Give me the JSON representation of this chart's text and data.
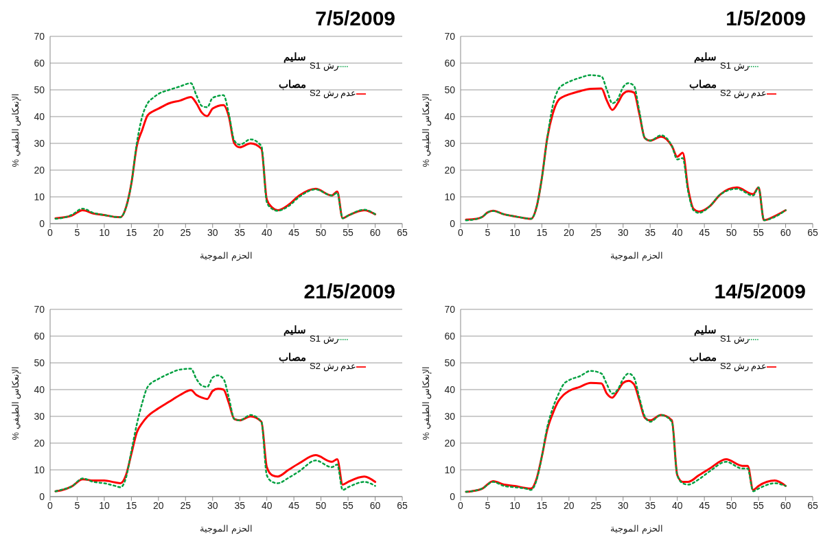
{
  "chart_data": [
    {
      "type": "line",
      "title": "7/5/2009",
      "xlabel": "الحزم الموجية",
      "ylabel": "% الإنعكاس الطيفي",
      "xlim": [
        0,
        65
      ],
      "xticks": [
        0,
        5,
        10,
        15,
        20,
        25,
        30,
        35,
        40,
        45,
        50,
        55,
        60,
        65
      ],
      "ylim": [
        0,
        70
      ],
      "yticks": [
        0,
        10,
        20,
        30,
        40,
        50,
        60,
        70
      ],
      "grid": "y",
      "legend": "top right",
      "marker": "none",
      "annotations": [
        "سليم",
        "مصاب"
      ],
      "x": [
        1,
        3,
        4,
        6,
        8,
        10,
        12,
        13,
        14,
        15,
        16,
        17,
        18,
        19,
        20,
        22,
        24,
        26,
        27,
        28,
        29,
        30,
        32,
        33,
        34,
        35,
        37,
        39,
        40,
        41,
        42,
        44,
        46,
        49,
        52,
        53,
        54,
        55,
        58,
        60
      ],
      "series": [
        {
          "name": "رش  S1",
          "color": "#00a040",
          "line_style": "dashed",
          "values": [
            1.8,
            2.5,
            3.3,
            5.6,
            4,
            3.2,
            2.5,
            2.4,
            6,
            15,
            30,
            40,
            45,
            47,
            48.5,
            50,
            51.3,
            52.5,
            48,
            44,
            43.5,
            47,
            48,
            41,
            31,
            29.5,
            31.5,
            29,
            8,
            5.5,
            4.8,
            6.5,
            10,
            12.8,
            10.5,
            11.5,
            2,
            3,
            5.2,
            3.5
          ]
        },
        {
          "name": "عدم رش S2",
          "color": "#ff0000",
          "line_style": "solid",
          "values": [
            2,
            2.5,
            3,
            5,
            3.8,
            3.2,
            2.5,
            2.4,
            6,
            15,
            29,
            35,
            40.5,
            42,
            43,
            45,
            46,
            47.3,
            45,
            41.5,
            40.2,
            43,
            44.3,
            40,
            30,
            28.5,
            30,
            28,
            9,
            6,
            5,
            7,
            10.5,
            13,
            10.5,
            12,
            2,
            3,
            5,
            3.5
          ]
        }
      ]
    },
    {
      "type": "line",
      "title": "1/5/2009",
      "xlabel": "الحزم الموجية",
      "ylabel": "% الإنعكاس الطيفي",
      "xlim": [
        0,
        65
      ],
      "xticks": [
        0,
        5,
        10,
        15,
        20,
        25,
        30,
        35,
        40,
        45,
        50,
        55,
        60,
        65
      ],
      "ylim": [
        0,
        70
      ],
      "yticks": [
        0,
        10,
        20,
        30,
        40,
        50,
        60,
        70
      ],
      "grid": "y",
      "legend": "top right",
      "marker": "none",
      "annotations": [
        "سليم",
        "مصاب"
      ],
      "x": [
        1,
        3,
        4,
        5,
        6,
        8,
        10,
        12,
        13,
        14,
        15,
        16,
        17,
        18,
        19,
        20,
        22,
        24,
        26,
        27,
        28,
        29,
        30,
        31,
        32,
        33,
        34,
        35,
        37,
        39,
        40,
        41,
        42,
        43,
        44,
        46,
        48,
        51,
        54,
        55,
        56,
        58,
        60
      ],
      "series": [
        {
          "name": "رش  S1",
          "color": "#00a040",
          "line_style": "dashed",
          "values": [
            1.2,
            1.8,
            2.5,
            4.2,
            4.7,
            3.5,
            2.7,
            2,
            1.8,
            6,
            17,
            32,
            44,
            50,
            52,
            53,
            54.5,
            55.5,
            55,
            50,
            45,
            46.5,
            51,
            52.5,
            51.5,
            42,
            32,
            31,
            33,
            29,
            24,
            24.5,
            12,
            5,
            4,
            6.5,
            11,
            13,
            10.5,
            13.5,
            1.3,
            2.5,
            5
          ]
        },
        {
          "name": "عدم رش S2",
          "color": "#ff0000",
          "line_style": "solid",
          "values": [
            1.5,
            1.8,
            2.5,
            4.2,
            4.8,
            3.5,
            2.7,
            2,
            1.8,
            6,
            17,
            32,
            41,
            46,
            47.5,
            48.3,
            49.5,
            50.4,
            50.5,
            46,
            42.5,
            45,
            48.5,
            49.5,
            49,
            41,
            32,
            31,
            32.5,
            29,
            25,
            26.5,
            13,
            5.5,
            4.5,
            6.5,
            11,
            13.5,
            11,
            13.5,
            1.3,
            2.8,
            5
          ]
        }
      ]
    },
    {
      "type": "line",
      "title": "21/5/2009",
      "xlabel": "الحزم الموجية",
      "ylabel": "% الإنعكاس الطيفي",
      "xlim": [
        0,
        65
      ],
      "xticks": [
        0,
        5,
        10,
        15,
        20,
        25,
        30,
        35,
        40,
        45,
        50,
        55,
        60,
        65
      ],
      "ylim": [
        0,
        70
      ],
      "yticks": [
        0,
        10,
        20,
        30,
        40,
        50,
        60,
        70
      ],
      "grid": "y",
      "legend": "top right",
      "marker": "none",
      "annotations": [
        "سليم",
        "مصاب"
      ],
      "x": [
        1,
        2,
        4,
        6,
        8,
        10,
        12,
        13,
        14,
        15,
        16,
        17,
        18,
        20,
        22,
        24,
        26,
        27,
        28,
        29,
        30,
        31,
        32,
        33,
        34,
        35,
        37,
        39,
        40,
        41,
        42,
        44,
        46,
        49,
        52,
        53,
        54,
        55,
        58,
        60
      ],
      "series": [
        {
          "name": "رش  S1",
          "color": "#00a040",
          "line_style": "dashed",
          "values": [
            2,
            2.5,
            3.8,
            6.8,
            5.5,
            5,
            4,
            3.5,
            7,
            17,
            27,
            35,
            41,
            44,
            46,
            47.5,
            47.8,
            44,
            41.5,
            41,
            44.5,
            45.3,
            44,
            37,
            29,
            28.5,
            30.5,
            28,
            8,
            5.5,
            5,
            7,
            9.5,
            13.5,
            11,
            12,
            2.5,
            3.5,
            5.5,
            4
          ]
        },
        {
          "name": "عدم رش S2",
          "color": "#ff0000",
          "line_style": "solid",
          "values": [
            2,
            2.3,
            3.8,
            6.5,
            6,
            6,
            5.3,
            5,
            8,
            16,
            24,
            27.5,
            30,
            33,
            35.5,
            38,
            39.8,
            38,
            37,
            36.5,
            39.5,
            40.3,
            40,
            35,
            29,
            28.5,
            30,
            28,
            11,
            8,
            7.5,
            10,
            12.5,
            15.5,
            13,
            14,
            4.5,
            5.5,
            7.5,
            5.5
          ]
        }
      ]
    },
    {
      "type": "line",
      "title": "14/5/2009",
      "xlabel": "الحزم الموجية",
      "ylabel": "% الإنعكاس الطيفي",
      "xlim": [
        0,
        65
      ],
      "xticks": [
        0,
        5,
        10,
        15,
        20,
        25,
        30,
        35,
        40,
        45,
        50,
        55,
        60,
        65
      ],
      "ylim": [
        0,
        70
      ],
      "yticks": [
        0,
        10,
        20,
        30,
        40,
        50,
        60,
        70
      ],
      "grid": "y",
      "legend": "top right",
      "marker": "none",
      "annotations": [
        "سليم",
        "مصاب"
      ],
      "x": [
        1,
        2,
        4,
        6,
        8,
        10,
        12,
        13,
        14,
        15,
        16,
        17,
        18,
        19,
        20,
        22,
        24,
        26,
        27,
        28,
        29,
        30,
        31,
        32,
        33,
        34,
        35,
        37,
        39,
        40,
        41,
        42,
        44,
        46,
        49,
        52,
        53,
        54,
        55,
        58,
        60
      ],
      "series": [
        {
          "name": "رش  S1",
          "color": "#00a040",
          "line_style": "dashed",
          "values": [
            1.8,
            2,
            3,
            5.5,
            4,
            3.5,
            3,
            2.5,
            6,
            15,
            26,
            33,
            38,
            42,
            43.5,
            45,
            47,
            46,
            42,
            38.5,
            40,
            44,
            46,
            44.5,
            37,
            30,
            28,
            30.5,
            28,
            8,
            5,
            4.5,
            6.5,
            9.5,
            13,
            10.5,
            10.5,
            2,
            3,
            5,
            4
          ]
        },
        {
          "name": "عدم رش S2",
          "color": "#ff0000",
          "line_style": "solid",
          "values": [
            1.8,
            2,
            3,
            5.8,
            4.5,
            4,
            3.2,
            3,
            6.5,
            15,
            25,
            31,
            35.5,
            38,
            39.5,
            41,
            42.5,
            42.3,
            38.5,
            37,
            39.5,
            42.5,
            43.3,
            42,
            36,
            29.5,
            28.5,
            30.5,
            28.5,
            8,
            5.5,
            5.5,
            8,
            10.5,
            14,
            11.5,
            11.5,
            2.5,
            4,
            6,
            4
          ]
        }
      ]
    }
  ]
}
